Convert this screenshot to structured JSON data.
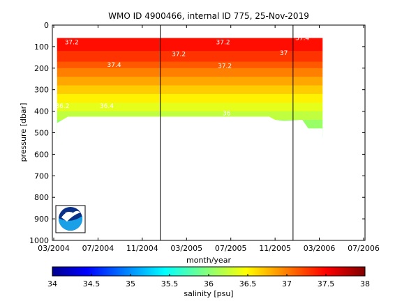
{
  "chart_data": {
    "type": "heatmap",
    "title": "WMO ID 4900466, internal ID 775, 25-Nov-2019",
    "xlabel": "month/year",
    "ylabel": "pressure [dbar]",
    "x_ticks": [
      "03/2004",
      "07/2004",
      "11/2004",
      "03/2005",
      "07/2005",
      "11/2005",
      "03/2006",
      "07/2006"
    ],
    "y_ticks": [
      0,
      100,
      200,
      300,
      400,
      500,
      600,
      700,
      800,
      900,
      1000
    ],
    "ylim": [
      0,
      1000
    ],
    "y_reversed": true,
    "grid": false,
    "vertical_markers": [
      "2004-12-20",
      "2005-12-20"
    ],
    "contour_labels": [
      {
        "text": "37.2",
        "x": "2004-04-20",
        "p": 80
      },
      {
        "text": "37.4",
        "x": "2004-08-15",
        "p": 185
      },
      {
        "text": "37.2",
        "x": "2005-02-10",
        "p": 135
      },
      {
        "text": "37.2",
        "x": "2005-06-10",
        "p": 80
      },
      {
        "text": "37.2",
        "x": "2005-06-15",
        "p": 190
      },
      {
        "text": "37",
        "x": "2005-11-25",
        "p": 130
      },
      {
        "text": "37.4",
        "x": "2006-01-15",
        "p": 60
      },
      {
        "text": "36.2",
        "x": "2004-03-25",
        "p": 375
      },
      {
        "text": "36.4",
        "x": "2004-07-25",
        "p": 375
      },
      {
        "text": "36",
        "x": "2005-06-20",
        "p": 410
      }
    ],
    "colorbar": {
      "label": "salinity [psu]",
      "min": 34,
      "max": 38,
      "ticks": [
        "34",
        "34.5",
        "35",
        "35.5",
        "36",
        "36.5",
        "37",
        "37.5",
        "38"
      ],
      "colormap": "jet"
    },
    "profile_bottom_dbar": [
      {
        "x": "2004-03-10",
        "p": 455
      },
      {
        "x": "2004-03-25",
        "p": 440
      },
      {
        "x": "2004-04-10",
        "p": 425
      },
      {
        "x": "2005-10-15",
        "p": 425
      },
      {
        "x": "2005-11-01",
        "p": 440
      },
      {
        "x": "2005-11-25",
        "p": 445
      },
      {
        "x": "2006-01-15",
        "p": 440
      },
      {
        "x": "2006-02-01",
        "p": 480
      },
      {
        "x": "2006-03-10",
        "p": 480
      }
    ],
    "salinity_layers": [
      {
        "p": 60,
        "value": 37.45
      },
      {
        "p": 120,
        "value": 37.3
      },
      {
        "p": 170,
        "value": 37.15
      },
      {
        "p": 200,
        "value": 37.0
      },
      {
        "p": 240,
        "value": 36.85
      },
      {
        "p": 280,
        "value": 36.7
      },
      {
        "p": 320,
        "value": 36.55
      },
      {
        "p": 360,
        "value": 36.4
      },
      {
        "p": 400,
        "value": 36.25
      },
      {
        "p": 440,
        "value": 36.1
      },
      {
        "p": 480,
        "value": 36.0
      }
    ],
    "noaa_logo_text": "NOAA"
  }
}
